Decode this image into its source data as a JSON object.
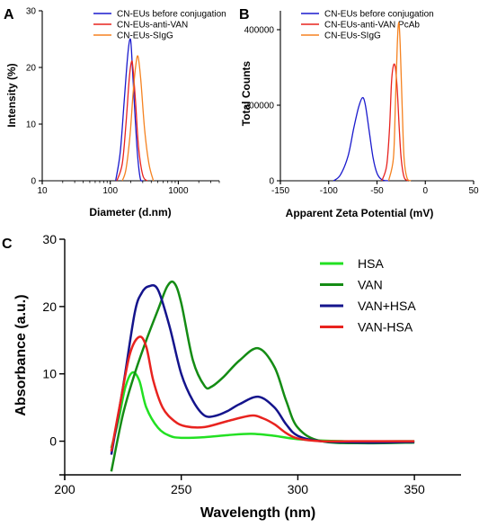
{
  "colors": {
    "blue": "#1a1acd",
    "red": "#e8231f",
    "orange": "#f58220",
    "light_green": "#22e022",
    "dark_green": "#148c14",
    "navy": "#14148c",
    "axis": "#000000"
  },
  "chart_data": [
    {
      "panel": "A",
      "type": "line",
      "xlabel": "Diameter (d.nm)",
      "ylabel": "Intensity (%)",
      "xscale": "log",
      "xlim": [
        10,
        4000
      ],
      "ylim": [
        0,
        30
      ],
      "xticks": [
        10,
        100,
        1000
      ],
      "xtick_labels": [
        "10",
        "100",
        "1000"
      ],
      "yticks": [
        0,
        10,
        20,
        30
      ],
      "ytick_labels": [
        "0",
        "10",
        "20",
        "30"
      ],
      "legend_position": "top-right",
      "series": [
        {
          "name": "CN-EUs before conjugation",
          "color_key": "blue",
          "x": [
            120,
            140,
            160,
            180,
            195,
            205,
            225,
            250,
            275,
            300
          ],
          "y": [
            0,
            5,
            14,
            22,
            25,
            23,
            14,
            5,
            0.5,
            0
          ]
        },
        {
          "name": "CN-EUs-anti-VAN",
          "color_key": "red",
          "x": [
            125,
            150,
            170,
            190,
            205,
            215,
            235,
            260,
            300,
            350
          ],
          "y": [
            0,
            3,
            10,
            18,
            21,
            20,
            14,
            6,
            1,
            0
          ]
        },
        {
          "name": "CN-EUs-SIgG",
          "color_key": "orange",
          "x": [
            150,
            170,
            195,
            215,
            235,
            255,
            280,
            320,
            370,
            430
          ],
          "y": [
            0,
            2,
            8,
            15,
            20,
            22,
            18,
            9,
            3,
            0
          ]
        }
      ]
    },
    {
      "panel": "B",
      "type": "line",
      "xlabel": "Apparent Zeta Potential (mV)",
      "ylabel": "Total Counts",
      "xlim": [
        -150,
        50
      ],
      "ylim": [
        0,
        450000
      ],
      "xticks": [
        -150,
        -100,
        -50,
        0,
        50
      ],
      "xtick_labels": [
        "-150",
        "-100",
        "-50",
        "0",
        "50"
      ],
      "yticks": [
        0,
        200000,
        400000
      ],
      "ytick_labels": [
        "0",
        "200000",
        "400000"
      ],
      "legend_position": "top-right",
      "series": [
        {
          "name": "CN-EUs before conjugation",
          "color_key": "blue",
          "x": [
            -95,
            -88,
            -80,
            -74,
            -69,
            -65,
            -62,
            -58,
            -54,
            -50,
            -45,
            -38
          ],
          "y": [
            0,
            15000,
            65000,
            140000,
            195000,
            220000,
            200000,
            130000,
            60000,
            20000,
            3000,
            0
          ]
        },
        {
          "name": "CN-EUs-anti-VAN PcAb",
          "color_key": "red",
          "x": [
            -45,
            -40,
            -37,
            -35,
            -33,
            -31,
            -29,
            -27,
            -25,
            -22,
            -18
          ],
          "y": [
            0,
            40000,
            140000,
            260000,
            305000,
            300000,
            240000,
            140000,
            60000,
            10000,
            0
          ]
        },
        {
          "name": "CN-EUs-SIgG",
          "color_key": "orange",
          "x": [
            -38,
            -33,
            -31,
            -29,
            -27.5,
            -26,
            -24,
            -22,
            -19,
            -15
          ],
          "y": [
            0,
            60000,
            200000,
            360000,
            420000,
            360000,
            200000,
            60000,
            8000,
            0
          ]
        }
      ]
    },
    {
      "panel": "C",
      "type": "line",
      "xlabel": "Wavelength (nm)",
      "ylabel": "Absorbance (a.u.)",
      "xlim": [
        200,
        370
      ],
      "ylim": [
        -5,
        30
      ],
      "xticks": [
        200,
        250,
        300,
        350
      ],
      "xtick_labels": [
        "200",
        "250",
        "300",
        "350"
      ],
      "yticks": [
        0,
        10,
        20,
        30
      ],
      "ytick_labels": [
        "0",
        "10",
        "20",
        "30"
      ],
      "legend_position": "top-right",
      "series": [
        {
          "name": "HSA",
          "color_key": "light_green",
          "x": [
            220,
            223,
            226,
            229,
            232,
            235,
            240,
            245,
            250,
            260,
            270,
            280,
            290,
            300,
            320,
            350
          ],
          "y": [
            -1,
            3,
            8,
            10.2,
            9,
            5,
            2,
            0.8,
            0.5,
            0.6,
            0.9,
            1.1,
            0.8,
            0.3,
            0,
            0
          ]
        },
        {
          "name": "VAN",
          "color_key": "dark_green",
          "x": [
            220,
            225,
            230,
            235,
            240,
            244,
            247,
            250,
            255,
            260,
            263,
            268,
            275,
            283,
            290,
            295,
            300,
            310,
            330,
            350
          ],
          "y": [
            -4.5,
            4,
            10,
            15,
            19.5,
            23,
            23.5,
            20.5,
            12,
            8.2,
            8.1,
            9.5,
            12,
            13.8,
            11,
            6,
            2,
            0,
            -0.3,
            -0.2
          ]
        },
        {
          "name": "VAN+HSA",
          "color_key": "navy",
          "x": [
            220,
            225,
            230,
            233,
            236,
            240,
            245,
            250,
            255,
            260,
            265,
            270,
            275,
            283,
            290,
            295,
            300,
            310,
            330,
            350
          ],
          "y": [
            -2,
            8,
            19,
            22,
            23,
            22.5,
            17,
            10,
            6,
            3.8,
            3.8,
            4.5,
            5.5,
            6.6,
            5,
            2.5,
            0.8,
            0,
            -0.2,
            -0.1
          ]
        },
        {
          "name": "VAN-HSA",
          "color_key": "red",
          "x": [
            220,
            224,
            228,
            232,
            235,
            238,
            242,
            247,
            252,
            260,
            270,
            280,
            285,
            290,
            295,
            300,
            310,
            330,
            350
          ],
          "y": [
            -1.5,
            6,
            13,
            15.5,
            14,
            9,
            5,
            3,
            2.2,
            2.1,
            3,
            3.8,
            3.4,
            2.5,
            1.2,
            0.4,
            0,
            0,
            0
          ]
        }
      ]
    }
  ]
}
